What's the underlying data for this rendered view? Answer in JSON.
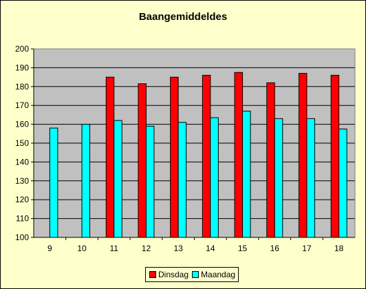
{
  "chart_data": {
    "type": "bar",
    "title": "Baangemiddeldes",
    "categories": [
      "9",
      "10",
      "11",
      "12",
      "13",
      "14",
      "15",
      "16",
      "17",
      "18"
    ],
    "series": [
      {
        "name": "Dinsdag",
        "color": "#ff0000",
        "values": [
          null,
          null,
          185,
          181.5,
          185,
          186,
          187.5,
          182,
          187,
          186
        ]
      },
      {
        "name": "Maandag",
        "color": "#00ffff",
        "values": [
          158,
          160,
          162,
          159,
          161,
          163.5,
          167,
          163,
          163,
          157.5
        ]
      }
    ],
    "ylim": [
      100,
      200
    ],
    "yticks": [
      "100",
      "110",
      "120",
      "130",
      "140",
      "150",
      "160",
      "170",
      "180",
      "190",
      "200"
    ],
    "grid": true,
    "legend_position": "bottom",
    "plot_background": "#c0c0c0",
    "page_background": "#ffffcc"
  }
}
